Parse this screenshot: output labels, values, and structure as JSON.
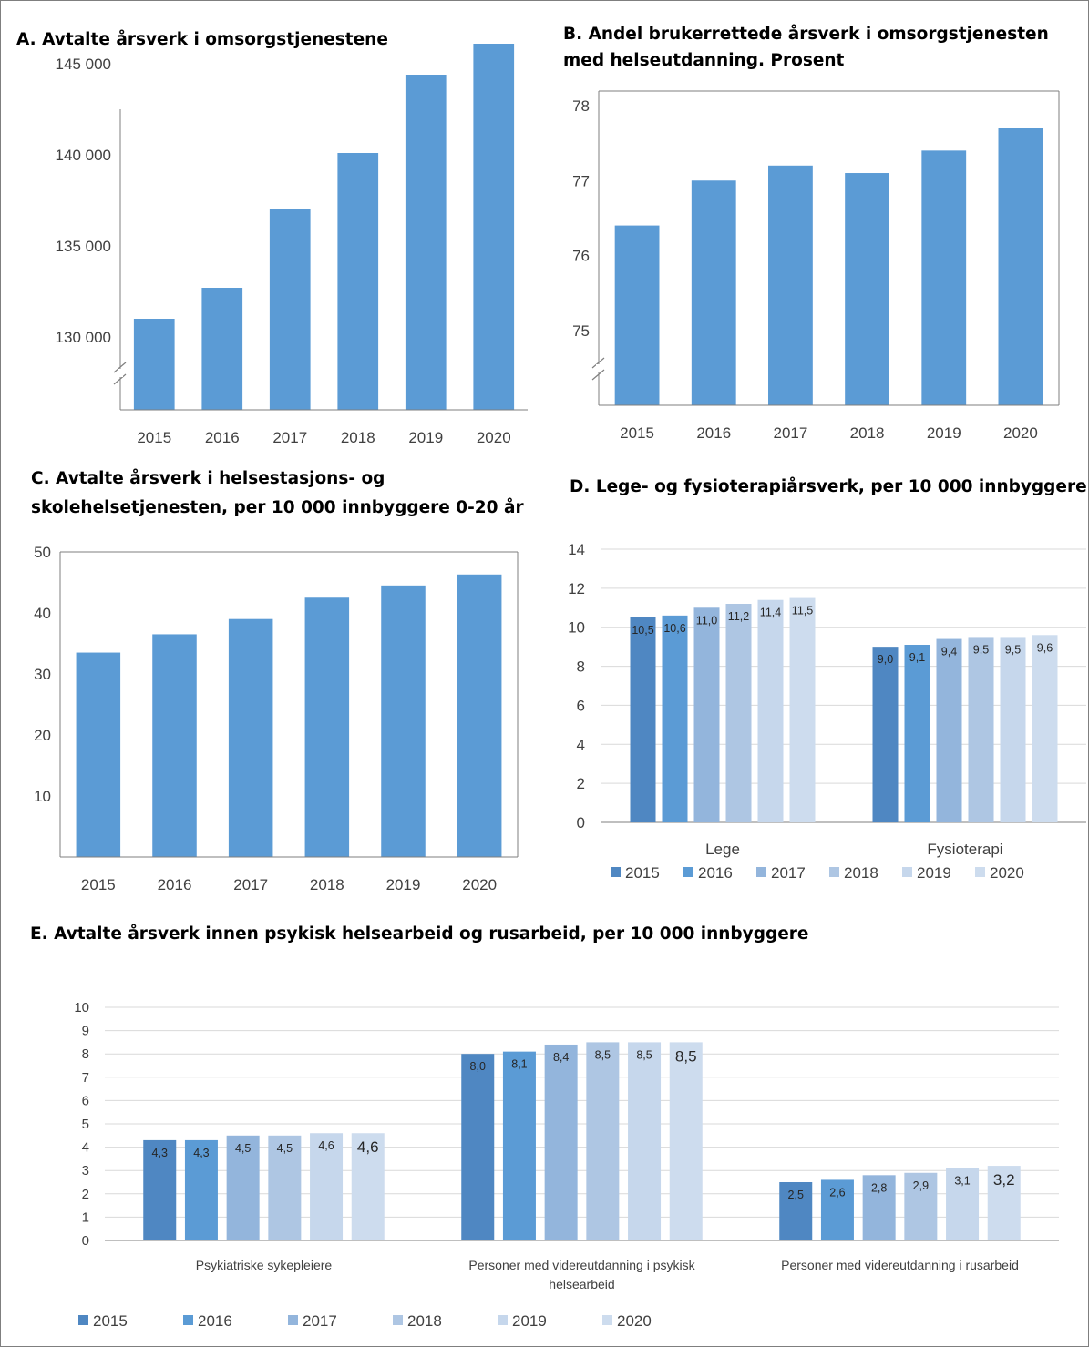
{
  "colors": {
    "bar": "#5b9bd5",
    "axis": "#7f7f7f",
    "grid": "#d9d9d9",
    "series": [
      "#4f87c2",
      "#5b9bd5",
      "#93b5dc",
      "#aec6e3",
      "#c6d7ec",
      "#cddcee"
    ]
  },
  "chart_data": [
    {
      "id": "A",
      "type": "bar",
      "title": "A. Avtalte årsverk i omsorgstjenestene",
      "categories": [
        "2015",
        "2016",
        "2017",
        "2018",
        "2019",
        "2020"
      ],
      "values": [
        131000,
        132700,
        137000,
        140100,
        144400,
        146100
      ],
      "yticks": [
        130000,
        135000,
        140000,
        145000
      ],
      "ytick_labels": [
        "130 000",
        "135 000",
        "140 000",
        "145 000"
      ],
      "ylim": [
        126000,
        147000
      ],
      "axis_break": true,
      "grid": false
    },
    {
      "id": "B",
      "type": "bar",
      "title": [
        "B. Andel  brukerrettede årsverk i omsorgstjenesten",
        "med helseutdanning. Prosent"
      ],
      "categories": [
        "2015",
        "2016",
        "2017",
        "2018",
        "2019",
        "2020"
      ],
      "values": [
        76.4,
        77.0,
        77.2,
        77.1,
        77.4,
        77.7
      ],
      "yticks": [
        75,
        76,
        77,
        78
      ],
      "ytick_labels": [
        "75",
        "76",
        "77",
        "78"
      ],
      "ylim": [
        74.0,
        78.0
      ],
      "axis_break": true,
      "grid": false
    },
    {
      "id": "C",
      "type": "bar",
      "title": [
        "C. Avtalte årsverk i helsestasjons- og",
        "skolehelsetjenesten, per 10 000 innbyggere 0-20 år"
      ],
      "categories": [
        "2015",
        "2016",
        "2017",
        "2018",
        "2019",
        "2020"
      ],
      "values": [
        33.5,
        36.5,
        39.0,
        42.5,
        44.5,
        46.3
      ],
      "yticks": [
        10,
        20,
        30,
        40,
        50
      ],
      "ytick_labels": [
        "10",
        "20",
        "30",
        "40",
        "50"
      ],
      "ylim": [
        0,
        50
      ],
      "grid": false
    },
    {
      "id": "D",
      "type": "bar",
      "title": "D. Lege- og fysioterapiårsverk, per 10 000 innbyggere",
      "categories": [
        "Lege",
        "Fysioterapi"
      ],
      "series": [
        {
          "name": "2015",
          "values": [
            10.5,
            9.0
          ],
          "labels": [
            "10,5",
            "9,0"
          ]
        },
        {
          "name": "2016",
          "values": [
            10.6,
            9.1
          ],
          "labels": [
            "10,6",
            "9,1"
          ]
        },
        {
          "name": "2017",
          "values": [
            11.0,
            9.4
          ],
          "labels": [
            "11,0",
            "9,4"
          ]
        },
        {
          "name": "2018",
          "values": [
            11.2,
            9.5
          ],
          "labels": [
            "11,2",
            "9,5"
          ]
        },
        {
          "name": "2019",
          "values": [
            11.4,
            9.5
          ],
          "labels": [
            "11,4",
            "9,5"
          ]
        },
        {
          "name": "2020",
          "values": [
            11.5,
            9.6
          ],
          "labels": [
            "11,5",
            "9,6"
          ]
        }
      ],
      "yticks": [
        0,
        2,
        4,
        6,
        8,
        10,
        12,
        14
      ],
      "ytick_labels": [
        "0",
        "2",
        "4",
        "6",
        "8",
        "10",
        "12",
        "14"
      ],
      "ylim": [
        0,
        14
      ],
      "grid": true,
      "legend": "bottom"
    },
    {
      "id": "E",
      "type": "bar",
      "title": "E. Avtalte årsverk innen psykisk helsearbeid og rusarbeid, per 10 000 innbyggere",
      "categories": [
        [
          "Psykiatriske sykepleiere"
        ],
        [
          "Personer med videreutdanning i psykisk",
          "helsearbeid"
        ],
        [
          "Personer med videreutdanning i rusarbeid"
        ]
      ],
      "series": [
        {
          "name": "2015",
          "values": [
            4.3,
            8.0,
            2.5
          ],
          "labels": [
            "4,3",
            "8,0",
            "2,5"
          ]
        },
        {
          "name": "2016",
          "values": [
            4.3,
            8.1,
            2.6
          ],
          "labels": [
            "4,3",
            "8,1",
            "2,6"
          ]
        },
        {
          "name": "2017",
          "values": [
            4.5,
            8.4,
            2.8
          ],
          "labels": [
            "4,5",
            "8,4",
            "2,8"
          ]
        },
        {
          "name": "2018",
          "values": [
            4.5,
            8.5,
            2.9
          ],
          "labels": [
            "4,5",
            "8,5",
            "2,9"
          ]
        },
        {
          "name": "2019",
          "values": [
            4.6,
            8.5,
            3.1
          ],
          "labels": [
            "4,6",
            "8,5",
            "3,1"
          ]
        },
        {
          "name": "2020",
          "values": [
            4.6,
            8.5,
            3.2
          ],
          "labels": [
            "4,6",
            "8,5",
            "3,2"
          ]
        }
      ],
      "yticks": [
        0,
        1,
        2,
        3,
        4,
        5,
        6,
        7,
        8,
        9,
        10
      ],
      "ytick_labels": [
        "0",
        "1",
        "2",
        "3",
        "4",
        "5",
        "6",
        "7",
        "8",
        "9",
        "10"
      ],
      "ylim": [
        0,
        10
      ],
      "grid": true,
      "legend": "bottom"
    }
  ]
}
